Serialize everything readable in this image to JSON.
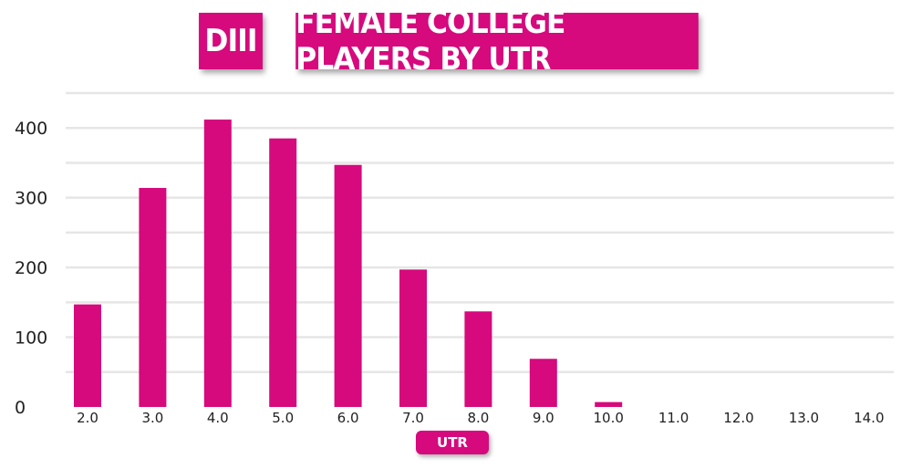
{
  "title": {
    "division": "DIII",
    "main": "FEMALE COLLEGE PLAYERS BY UTR"
  },
  "colors": {
    "accent": "#d6097d",
    "grid": "#e6e6e6",
    "text": "#222222"
  },
  "chart_data": {
    "type": "bar",
    "title": "FEMALE COLLEGE PLAYERS BY UTR",
    "xlabel": "UTR",
    "ylabel": "",
    "categories": [
      "2.0",
      "3.0",
      "4.0",
      "5.0",
      "6.0",
      "7.0",
      "8.0",
      "9.0",
      "10.0",
      "11.0",
      "12.0",
      "13.0",
      "14.0"
    ],
    "values": [
      147,
      314,
      412,
      385,
      347,
      197,
      137,
      69,
      7,
      0,
      0,
      0,
      0
    ],
    "ylim": [
      0,
      450
    ],
    "yticks": [
      "0",
      "100",
      "200",
      "300",
      "400"
    ],
    "grid": true,
    "legend": "none"
  }
}
